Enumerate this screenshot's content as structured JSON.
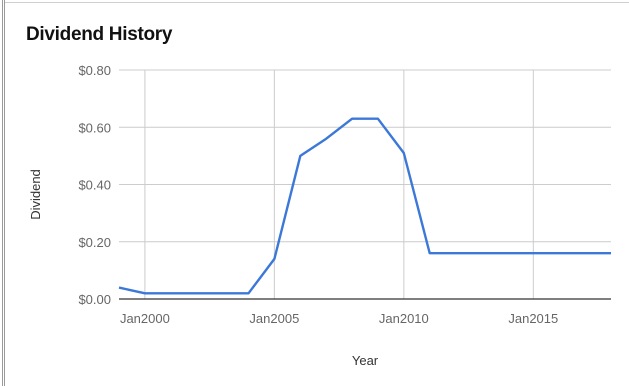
{
  "chart_data": {
    "type": "line",
    "title": "Dividend History",
    "xlabel": "Year",
    "ylabel": "Dividend",
    "ylim": [
      0,
      0.8
    ],
    "xlim": [
      "1999-01",
      "2018-01"
    ],
    "y_ticks": [
      "$0.00",
      "$0.20",
      "$0.40",
      "$0.60",
      "$0.80"
    ],
    "x_ticks": [
      {
        "label": "Jan2000",
        "date": "2000-01"
      },
      {
        "label": "Jan2005",
        "date": "2005-01"
      },
      {
        "label": "Jan2010",
        "date": "2010-01"
      },
      {
        "label": "Jan2015",
        "date": "2015-01"
      }
    ],
    "grid": true,
    "series": [
      {
        "color": "#3c78d8",
        "points": [
          {
            "x": "1999-01",
            "y": 0.04
          },
          {
            "x": "2000-01",
            "y": 0.02
          },
          {
            "x": "2001-01",
            "y": 0.02
          },
          {
            "x": "2002-01",
            "y": 0.02
          },
          {
            "x": "2003-01",
            "y": 0.02
          },
          {
            "x": "2004-01",
            "y": 0.02
          },
          {
            "x": "2005-01",
            "y": 0.14
          },
          {
            "x": "2006-01",
            "y": 0.5
          },
          {
            "x": "2007-01",
            "y": 0.56
          },
          {
            "x": "2008-01",
            "y": 0.63
          },
          {
            "x": "2009-01",
            "y": 0.63
          },
          {
            "x": "2010-01",
            "y": 0.51
          },
          {
            "x": "2011-01",
            "y": 0.16
          },
          {
            "x": "2012-01",
            "y": 0.16
          },
          {
            "x": "2013-01",
            "y": 0.16
          },
          {
            "x": "2014-01",
            "y": 0.16
          },
          {
            "x": "2015-01",
            "y": 0.16
          },
          {
            "x": "2016-01",
            "y": 0.16
          },
          {
            "x": "2017-01",
            "y": 0.16
          },
          {
            "x": "2018-01",
            "y": 0.16
          }
        ]
      }
    ]
  }
}
